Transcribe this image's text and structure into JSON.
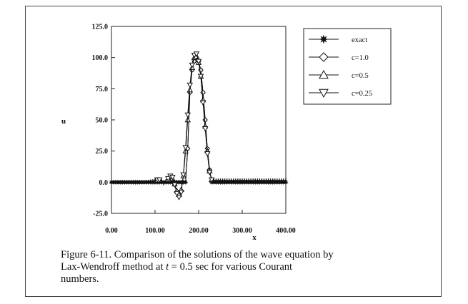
{
  "chart_data": {
    "type": "line",
    "title": "",
    "xlabel": "x",
    "ylabel": "u",
    "xlim": [
      0,
      400
    ],
    "ylim": [
      -25,
      125
    ],
    "x_ticks": [
      0,
      100,
      200,
      300,
      400
    ],
    "x_tick_labels": [
      "0.00",
      "100.00",
      "200.00",
      "300.00",
      "400.00"
    ],
    "y_ticks": [
      -25,
      0,
      25,
      50,
      75,
      100,
      125
    ],
    "y_tick_labels": [
      "-25.0",
      "0.0",
      "25.0",
      "50.0",
      "75.0",
      "100.0",
      "125.0"
    ],
    "grid": false,
    "legend_position": "top-right",
    "x": [
      0,
      5,
      10,
      15,
      20,
      25,
      30,
      35,
      40,
      45,
      50,
      55,
      60,
      65,
      70,
      75,
      80,
      85,
      90,
      95,
      100,
      105,
      110,
      115,
      120,
      125,
      130,
      135,
      140,
      145,
      150,
      155,
      160,
      165,
      170,
      175,
      180,
      185,
      190,
      195,
      200,
      205,
      210,
      215,
      220,
      225,
      230,
      235,
      240,
      245,
      250,
      255,
      260,
      265,
      270,
      275,
      280,
      285,
      290,
      295,
      300,
      305,
      310,
      315,
      320,
      325,
      330,
      335,
      340,
      345,
      350,
      355,
      360,
      365,
      370,
      375,
      380,
      385,
      390,
      395,
      400
    ],
    "series": [
      {
        "name": "exact",
        "marker": "star",
        "values": [
          0,
          0,
          0,
          0,
          0,
          0,
          0,
          0,
          0,
          0,
          0,
          0,
          0,
          0,
          0,
          0,
          0,
          0,
          0,
          0,
          0,
          0,
          0,
          0,
          0,
          0,
          0,
          0,
          0,
          0,
          0,
          0,
          0,
          0,
          0,
          27,
          72,
          90,
          97,
          100,
          97,
          90,
          72,
          50,
          27,
          10,
          0,
          0,
          0,
          0,
          0,
          0,
          0,
          0,
          0,
          0,
          0,
          0,
          0,
          0,
          0,
          0,
          0,
          0,
          0,
          0,
          0,
          0,
          0,
          0,
          0,
          0,
          0,
          0,
          0,
          0,
          0,
          0,
          0,
          0,
          0
        ]
      },
      {
        "name": "c=1.0",
        "marker": "diamond",
        "values": [
          0,
          0,
          0,
          0,
          0,
          0,
          0,
          0,
          0,
          0,
          0,
          0,
          0,
          0,
          0,
          0,
          0,
          0,
          0,
          0,
          0,
          0,
          0,
          0,
          0,
          0,
          0,
          0,
          0,
          0,
          0,
          0,
          0,
          0,
          0,
          27,
          72,
          90,
          97,
          100,
          97,
          90,
          72,
          50,
          27,
          10,
          0,
          0,
          0,
          0,
          0,
          0,
          0,
          0,
          0,
          0,
          0,
          0,
          0,
          0,
          0,
          0,
          0,
          0,
          0,
          0,
          0,
          0,
          0,
          0,
          0,
          0,
          0,
          0,
          0,
          0,
          0,
          0,
          0,
          0,
          0
        ]
      },
      {
        "name": "c=0.5",
        "marker": "triangle-up",
        "values": [
          0,
          0,
          0,
          0,
          0,
          0,
          0,
          0,
          0,
          0,
          0,
          0,
          0,
          0,
          0,
          0,
          0.2,
          0.3,
          0.5,
          0.8,
          1,
          1.5,
          1.5,
          0.5,
          -0.5,
          0.5,
          2,
          4,
          3,
          -1.5,
          -7,
          -10,
          -6,
          5,
          25,
          50,
          74,
          92,
          100,
          101,
          96,
          85,
          66,
          45,
          25,
          9,
          2,
          1,
          1,
          1,
          1,
          1,
          1,
          1,
          1,
          1,
          1,
          1,
          1,
          1,
          1,
          1,
          1,
          1,
          1,
          1,
          1,
          1,
          1,
          1,
          1,
          1,
          1,
          1,
          1,
          1,
          1,
          1,
          1,
          1,
          1
        ]
      },
      {
        "name": "c=0.25",
        "marker": "triangle-down",
        "values": [
          0,
          0,
          0,
          0,
          0,
          0,
          0,
          0,
          0,
          0,
          0,
          0,
          0,
          0,
          0,
          0,
          0.3,
          0.5,
          0.8,
          1,
          1.5,
          2,
          2,
          1,
          -1,
          1,
          3,
          5,
          4,
          -2,
          -9,
          -12,
          -8,
          6,
          28,
          54,
          78,
          94,
          102,
          103,
          97,
          85,
          64,
          43,
          23,
          8,
          2,
          1.5,
          1.5,
          1.5,
          1.5,
          1.5,
          1.5,
          1.5,
          1.5,
          1.5,
          1.5,
          1.5,
          1.5,
          1.5,
          1.5,
          1.5,
          1.5,
          1.5,
          1.5,
          1.5,
          1.5,
          1.5,
          1.5,
          1.5,
          1.5,
          1.5,
          1.5,
          1.5,
          1.5,
          1.5,
          1.5,
          1.5,
          1.5,
          1.5,
          1.5
        ]
      }
    ]
  },
  "caption": {
    "line1": "Figure 6-11. Comparison of the solutions of the wave equation by",
    "line2_pre": "Lax-Wendroff method at ",
    "line2_var": "t",
    "line2_post": " = 0.5 sec for various Courant",
    "line3": "numbers."
  }
}
